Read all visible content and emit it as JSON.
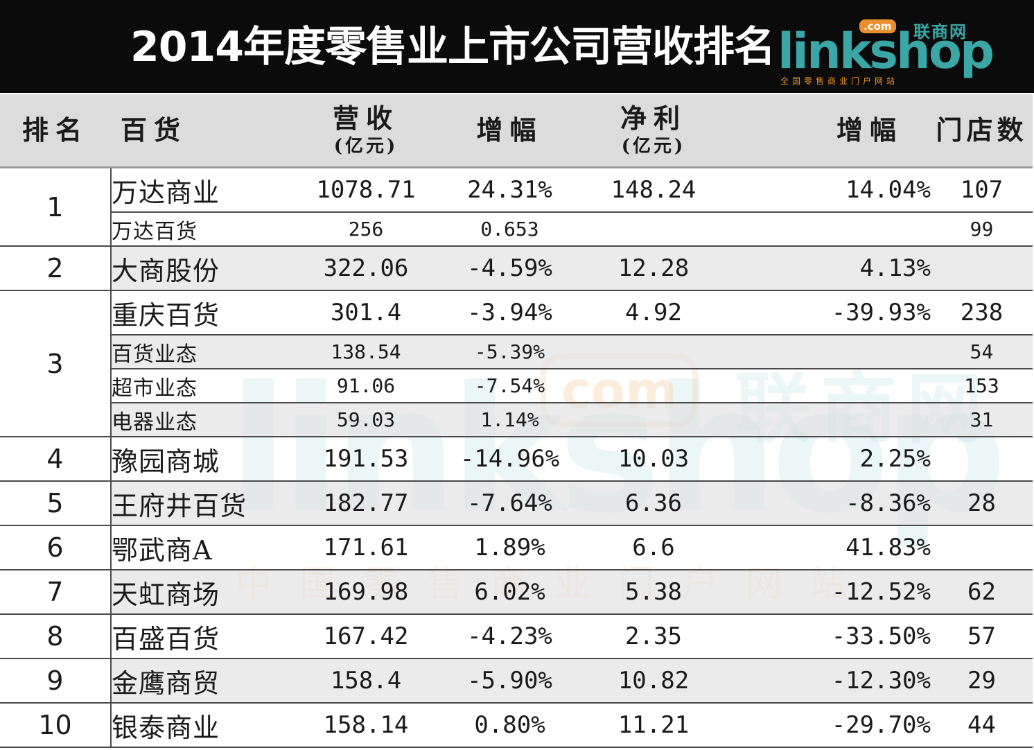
{
  "header": {
    "title": "2014年度零售业上市公司营收排名",
    "logo": {
      "word": "linkshop",
      "cn": "联商网",
      "com": ".com",
      "sub": "全国零售商业门户网站"
    }
  },
  "watermark": {
    "word": "linkshop",
    "cn": "联商网",
    "com": "com",
    "sub": "中国零售商业门户网站"
  },
  "table": {
    "headers": {
      "rank": "排名",
      "name": "百货",
      "revenue": "营收",
      "revenue_unit": "(亿元)",
      "growth": "增幅",
      "profit": "净利",
      "profit_unit": "(亿元)",
      "profit_growth": "增幅",
      "stores": "门店数"
    },
    "rows": [
      {
        "rank": "1",
        "name": "万达商业",
        "revenue": "1078.71",
        "growth": "24.31%",
        "profit": "148.24",
        "profit_growth": "14.04%",
        "stores": "107"
      },
      {
        "name": "万达百货",
        "revenue": "256",
        "growth": "0.653",
        "profit": "",
        "profit_growth": "",
        "stores": "99"
      },
      {
        "rank": "2",
        "name": "大商股份",
        "revenue": "322.06",
        "growth": "-4.59%",
        "profit": "12.28",
        "profit_growth": "4.13%",
        "stores": ""
      },
      {
        "rank": "3",
        "name": "重庆百货",
        "revenue": "301.4",
        "growth": "-3.94%",
        "profit": "4.92",
        "profit_growth": "-39.93%",
        "stores": "238"
      },
      {
        "name": "百货业态",
        "revenue": "138.54",
        "growth": "-5.39%",
        "profit": "",
        "profit_growth": "",
        "stores": "54"
      },
      {
        "name": "超市业态",
        "revenue": "91.06",
        "growth": "-7.54%",
        "profit": "",
        "profit_growth": "",
        "stores": "153"
      },
      {
        "name": "电器业态",
        "revenue": "59.03",
        "growth": "1.14%",
        "profit": "",
        "profit_growth": "",
        "stores": "31"
      },
      {
        "rank": "4",
        "name": "豫园商城",
        "revenue": "191.53",
        "growth": "-14.96%",
        "profit": "10.03",
        "profit_growth": "2.25%",
        "stores": ""
      },
      {
        "rank": "5",
        "name": "王府井百货",
        "revenue": "182.77",
        "growth": "-7.64%",
        "profit": "6.36",
        "profit_growth": "-8.36%",
        "stores": "28"
      },
      {
        "rank": "6",
        "name": "鄂武商A",
        "revenue": "171.61",
        "growth": "1.89%",
        "profit": "6.6",
        "profit_growth": "41.83%",
        "stores": ""
      },
      {
        "rank": "7",
        "name": "天虹商场",
        "revenue": "169.98",
        "growth": "6.02%",
        "profit": "5.38",
        "profit_growth": "-12.52%",
        "stores": "62"
      },
      {
        "rank": "8",
        "name": "百盛百货",
        "revenue": "167.42",
        "growth": "-4.23%",
        "profit": "2.35",
        "profit_growth": "-33.50%",
        "stores": "57"
      },
      {
        "rank": "9",
        "name": "金鹰商贸",
        "revenue": "158.4",
        "growth": "-5.90%",
        "profit": "10.82",
        "profit_growth": "-12.30%",
        "stores": "29"
      },
      {
        "rank": "10",
        "name": "银泰商业",
        "revenue": "158.14",
        "growth": "0.80%",
        "profit": "11.21",
        "profit_growth": "-29.70%",
        "stores": "44"
      }
    ]
  }
}
